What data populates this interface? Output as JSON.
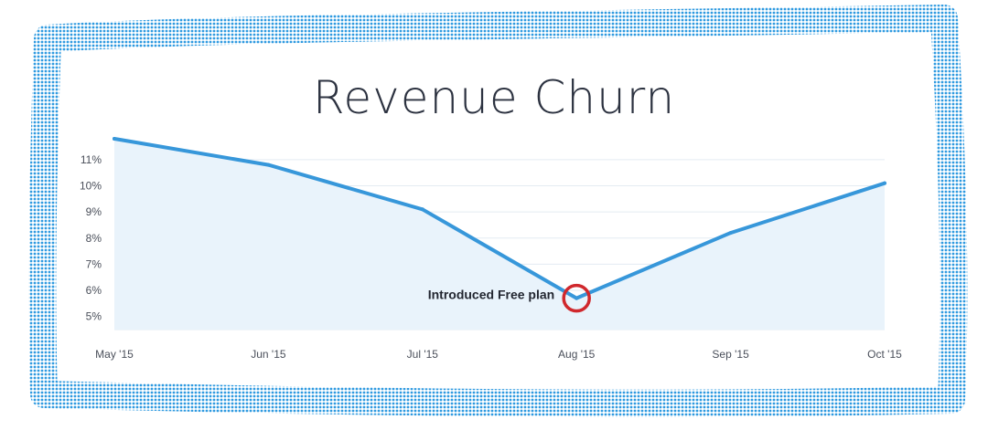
{
  "colors": {
    "frame": "#2f9ae0",
    "line": "#3797da",
    "area": "#e9f3fb",
    "grid": "#e3ebf2",
    "highlight": "#d0282d",
    "title": "#2c3240",
    "tick": "#4a4f5a"
  },
  "chart_data": {
    "type": "area",
    "title": "Revenue Churn",
    "xlabel": "",
    "ylabel": "",
    "categories": [
      "May '15",
      "Jun '15",
      "Jul '15",
      "Aug '15",
      "Sep '15",
      "Oct '15"
    ],
    "series": [
      {
        "values": [
          11.8,
          10.8,
          9.1,
          5.7,
          8.2,
          10.1
        ]
      }
    ],
    "yticks": [
      5,
      6,
      7,
      8,
      9,
      10,
      11
    ],
    "ytick_labels": [
      "5%",
      "6%",
      "7%",
      "8%",
      "9%",
      "10%",
      "11%"
    ],
    "ylim": [
      4.5,
      11.8
    ],
    "grid": true,
    "legend": "none",
    "annotation": {
      "text": "Introduced Free plan",
      "category": "Aug '15",
      "value": 5.7,
      "highlight": "circle"
    }
  }
}
